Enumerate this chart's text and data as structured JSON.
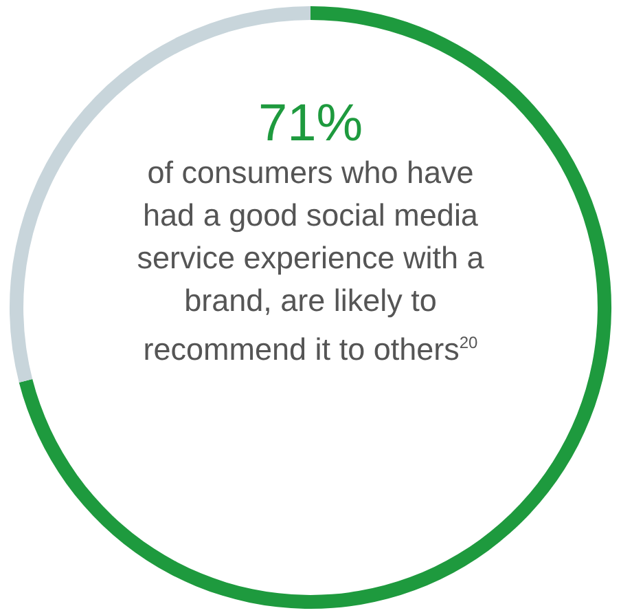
{
  "chart_data": {
    "type": "donut",
    "categories": [
      null,
      null
    ],
    "values": [
      71,
      29
    ],
    "colors": [
      "#1e9a3e",
      "#c8d5db"
    ],
    "value_labels": [
      "71%",
      null
    ],
    "annotations": [
      "of consumers who have had a good social media service experience with a brand, are likely to recommend it to others$^{20}$"
    ]
  }
}
